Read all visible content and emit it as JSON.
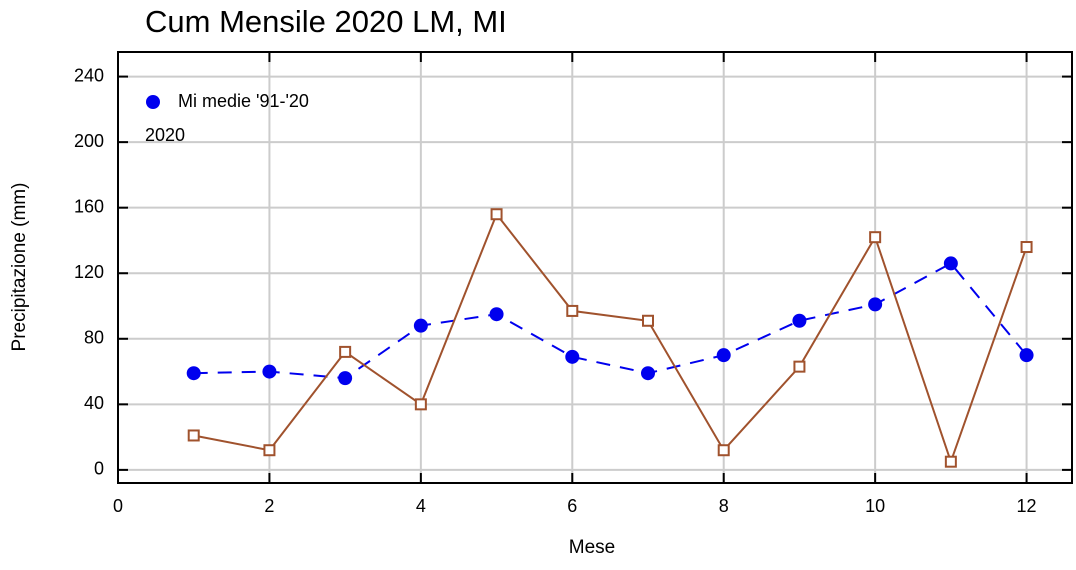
{
  "chart_data": {
    "type": "line",
    "title": "Cum Mensile 2020 LM, MI",
    "x_label": "Mese",
    "y_label": "Precipitazione (mm)",
    "x": [
      1,
      2,
      3,
      4,
      5,
      6,
      7,
      8,
      9,
      10,
      11,
      12
    ],
    "series": [
      {
        "name": "Mi medie '91-'20",
        "color": "#0000ee",
        "marker": "circle",
        "dash": true,
        "values": [
          59,
          60,
          56,
          88,
          95,
          69,
          59,
          70,
          91,
          101,
          126,
          70
        ]
      },
      {
        "name": "2020",
        "color": "#a0522d",
        "marker": "square",
        "dash": false,
        "values": [
          21,
          12,
          72,
          40,
          156,
          97,
          91,
          12,
          63,
          142,
          5,
          136
        ]
      }
    ],
    "xlim": [
      0,
      12.6
    ],
    "ylim": [
      -8,
      255
    ],
    "xticks": [
      0,
      2,
      4,
      6,
      8,
      10,
      12
    ],
    "yticks": [
      0,
      40,
      80,
      120,
      160,
      200,
      240
    ],
    "grid": true,
    "legend": "top-left"
  }
}
